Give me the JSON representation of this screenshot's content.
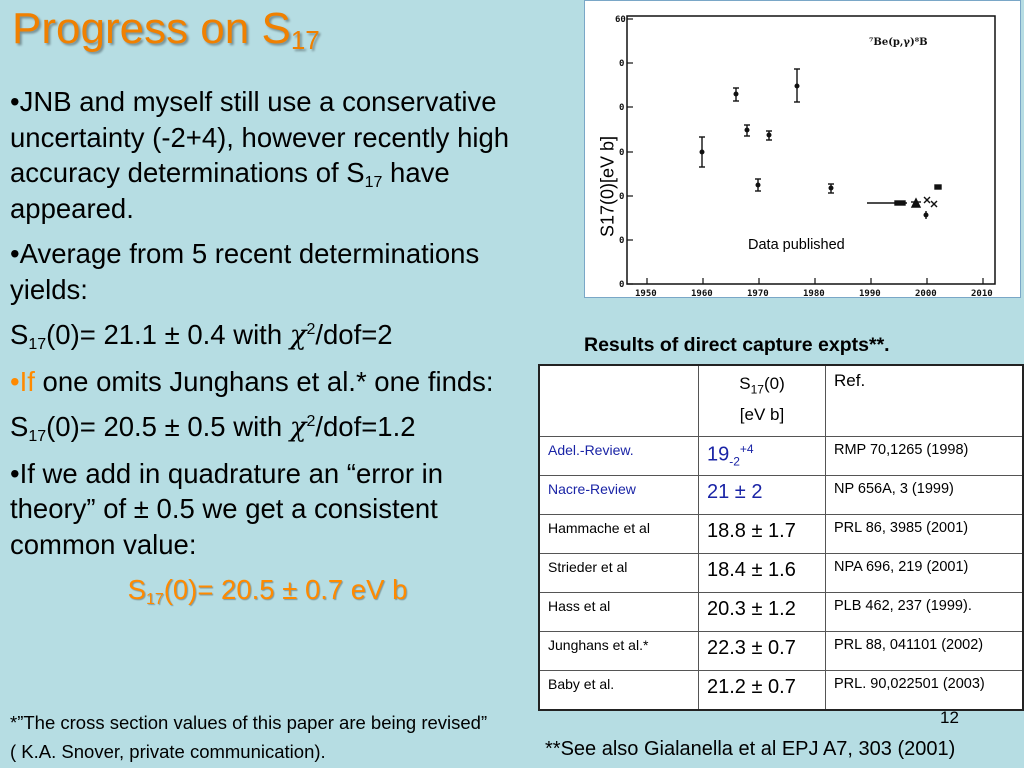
{
  "title": {
    "main": "Progress on S",
    "sub": "17"
  },
  "bullets": {
    "b1_pre": "•JNB and myself still  use a conservative uncertainty (-2+4), however recently high accuracy determinations of S",
    "b1_sub": "17",
    "b1_post": " have appeared.",
    "b2": "•Average from 5 recent determinations  yields:",
    "eq1_pre": "S",
    "eq1_sub": "17",
    "eq1_mid": "(0)= 21.1 ± 0.4 with ",
    "eq1_chi": "χ",
    "eq1_sup": "2",
    "eq1_post": "/dof=2",
    "b3_bullet": "•",
    "b3_if": "If",
    "b3_post": " one omits Junghans et al.* one finds:",
    "eq2_pre": "S",
    "eq2_sub": "17",
    "eq2_mid": "(0)= 20.5 ± 0.5 with ",
    "eq2_chi": "χ",
    "eq2_sup": "2",
    "eq2_post": "/dof=1.2",
    "b4": "•If we add in quadrature an “error in theory” of  ± 0.5 we get a consistent common value:",
    "final_pre": "S",
    "final_sub": "17",
    "final_post": "(0)= 20.5 ± 0.7 eV b"
  },
  "footnote": "*”The cross section values of this paper are being revised” ( K.A. Snover, private communication).",
  "ref_note": "**See also Gialanella et al EPJ A7, 303 (2001)",
  "page_number": "12",
  "plot": {
    "ylabel": "S17(0)[eV b]",
    "caption": "Data published",
    "legend": "⁷Be(p,γ)⁸B",
    "x_ticks": [
      "1950",
      "1960",
      "1970",
      "1980",
      "1990",
      "2000",
      "2010"
    ],
    "y_ticks": [
      "60",
      "0",
      "0",
      "0",
      "0",
      "0",
      "0"
    ]
  },
  "table": {
    "title": "Results of direct capture expts**.",
    "header": {
      "col2_main": "S",
      "col2_sub": "17",
      "col2_tail": "(0)",
      "col2_unit": "[eV b]",
      "col3": "Ref."
    },
    "rows": [
      {
        "name": "Adel.-Review.",
        "value_main": "19",
        "value_sub": "-2",
        "value_sup": "+4",
        "ref": "RMP 70,1265 (1998)"
      },
      {
        "name": "Nacre-Review",
        "value": "21 ± 2",
        "ref": "NP 656A, 3 (1999)"
      },
      {
        "name": "Hammache et al",
        "value": "18.8 ± 1.7",
        "ref": "PRL 86, 3985 (2001)"
      },
      {
        "name": "Strieder et al",
        "value": "18.4 ± 1.6",
        "ref": "NPA 696, 219 (2001)"
      },
      {
        "name": "Hass et al",
        "value": "20.3 ± 1.2",
        "ref": "PLB 462, 237 (1999)."
      },
      {
        "name": "Junghans et al.*",
        "value": "22.3 ± 0.7",
        "ref": "PRL 88, 041101 (2002)"
      },
      {
        "name": "Baby et al.",
        "value": "21.2 ± 0.7",
        "ref": "PRL. 90,022501 (2003)"
      }
    ]
  },
  "colors": {
    "background": "#b6dde3",
    "title": "#f08000",
    "highlight": "#ff8a00",
    "review_blue": "#1a24a6"
  }
}
